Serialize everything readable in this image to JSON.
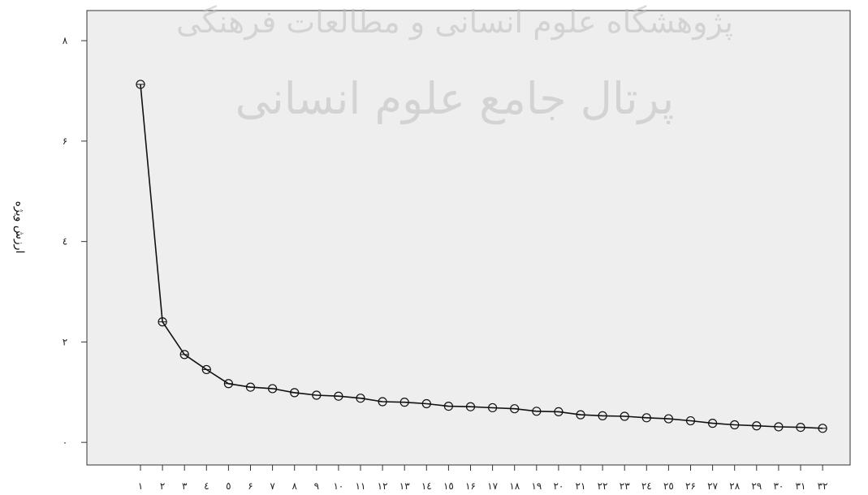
{
  "chart_data": {
    "type": "line",
    "title": "",
    "xlabel": "",
    "ylabel": "ارزش ویژه",
    "categories": [
      "١",
      "٢",
      "٣",
      "٤",
      "٥",
      "۶",
      "٧",
      "٨",
      "٩",
      "١٠",
      "١١",
      "١٢",
      "١٣",
      "١٤",
      "١٥",
      "١۶",
      "١٧",
      "١٨",
      "١٩",
      "٢٠",
      "٢١",
      "٢٢",
      "٢٣",
      "٢٤",
      "٢٥",
      "٢۶",
      "٢٧",
      "٢٨",
      "٢٩",
      "٣٠",
      "٣١",
      "٣٢"
    ],
    "values": [
      7.13,
      2.4,
      1.75,
      1.45,
      1.17,
      1.1,
      1.07,
      0.99,
      0.94,
      0.92,
      0.88,
      0.81,
      0.8,
      0.77,
      0.72,
      0.71,
      0.69,
      0.67,
      0.62,
      0.61,
      0.55,
      0.53,
      0.52,
      0.49,
      0.47,
      0.43,
      0.38,
      0.35,
      0.33,
      0.31,
      0.3,
      0.28
    ],
    "yticks": [
      0,
      2,
      4,
      6,
      8
    ],
    "ytick_labels": [
      "٠",
      "٢",
      "٤",
      "۶",
      "٨"
    ],
    "ylim": [
      -0.45,
      8.6
    ],
    "grid": false,
    "legend": "none",
    "colors": {
      "plot_background": "#eeeeee",
      "line": "#111111",
      "marker": "#111111",
      "axis": "#333333"
    },
    "watermark": {
      "line1": "پژوهشگاه علوم انسانی و مطالعات فرهنگی",
      "line2": "پرتال جامع علوم انسانی"
    }
  }
}
